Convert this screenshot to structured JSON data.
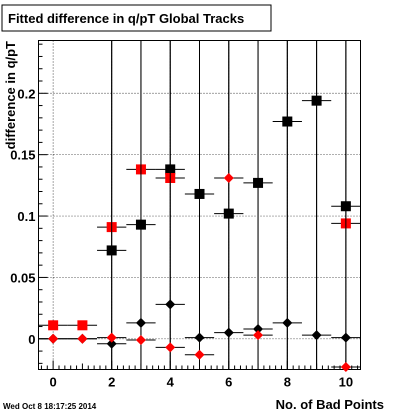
{
  "footer": {
    "timestamp": "Wed Oct  8 18:17:25 2014"
  },
  "chart_data": {
    "type": "scatter",
    "title": "Fitted difference in q/pT  Global Tracks",
    "xlabel": "No. of Bad Points",
    "ylabel": "difference in q/pT",
    "xlim": [
      -0.5,
      10.5
    ],
    "ylim": [
      -0.025,
      0.243
    ],
    "grid": true,
    "x_ticks": [
      0,
      2,
      4,
      6,
      8,
      10
    ],
    "x_tick_labels": [
      "0",
      "2",
      "4",
      "6",
      "8",
      "10"
    ],
    "y_ticks": [
      0,
      0.05,
      0.1,
      0.15,
      0.2
    ],
    "y_tick_labels": [
      "0",
      "0.05",
      "0.1",
      "0.15",
      "0.2"
    ],
    "series": [
      {
        "marker": "square",
        "color": "#000000",
        "points": [
          {
            "x": 2,
            "y": 0.072,
            "yerr": 0.45
          },
          {
            "x": 3,
            "y": 0.093,
            "yerr": 0.45
          },
          {
            "x": 4,
            "y": 0.138,
            "yerr": 0.45
          },
          {
            "x": 5,
            "y": 0.118,
            "yerr": 0.45
          },
          {
            "x": 6,
            "y": 0.102,
            "yerr": 0.45
          },
          {
            "x": 7,
            "y": 0.127,
            "yerr": 0.45
          },
          {
            "x": 8,
            "y": 0.177,
            "yerr": 0.45
          },
          {
            "x": 9,
            "y": 0.194,
            "yerr": 0.45
          },
          {
            "x": 10,
            "y": 0.108,
            "yerr": 0.45
          }
        ]
      },
      {
        "marker": "square",
        "color": "#ff0000",
        "points": [
          {
            "x": 0,
            "y": 0.011
          },
          {
            "x": 1,
            "y": 0.011
          },
          {
            "x": 2,
            "y": 0.091
          },
          {
            "x": 3,
            "y": 0.138
          },
          {
            "x": 4,
            "y": 0.131
          },
          {
            "x": 10,
            "y": 0.094
          }
        ]
      },
      {
        "marker": "diamond",
        "color": "#000000",
        "points": [
          {
            "x": 0,
            "y": 0.0,
            "yerr": 0.0
          },
          {
            "x": 1,
            "y": 0.0,
            "yerr": 0.0
          },
          {
            "x": 2,
            "y": -0.004,
            "yerr": 0.45
          },
          {
            "x": 3,
            "y": 0.013,
            "yerr": 0.45
          },
          {
            "x": 4,
            "y": 0.028,
            "yerr": 0.45
          },
          {
            "x": 5,
            "y": 0.001,
            "yerr": 0.45
          },
          {
            "x": 6,
            "y": 0.005,
            "yerr": 0.45
          },
          {
            "x": 7,
            "y": 0.008,
            "yerr": 0.45
          },
          {
            "x": 8,
            "y": 0.013,
            "yerr": 0.45
          },
          {
            "x": 9,
            "y": 0.003,
            "yerr": 0.45
          },
          {
            "x": 10,
            "y": 0.001,
            "yerr": 0.45
          }
        ]
      },
      {
        "marker": "diamond",
        "color": "#ff0000",
        "points": [
          {
            "x": 0,
            "y": 0.0
          },
          {
            "x": 1,
            "y": 0.0
          },
          {
            "x": 2,
            "y": 0.001
          },
          {
            "x": 3,
            "y": -0.001
          },
          {
            "x": 4,
            "y": -0.007
          },
          {
            "x": 5,
            "y": -0.013
          },
          {
            "x": 6,
            "y": 0.131
          },
          {
            "x": 7,
            "y": 0.003
          },
          {
            "x": 10,
            "y": -0.023
          }
        ]
      }
    ]
  }
}
